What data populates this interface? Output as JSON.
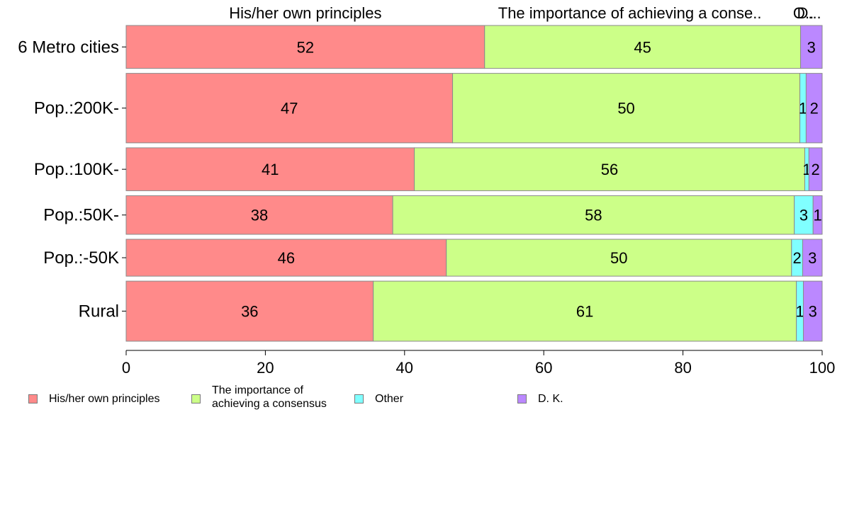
{
  "chart_data": {
    "type": "bar",
    "orientation": "horizontal",
    "stacked": true,
    "categories": [
      "6 Metro cities",
      "Pop.:200K-",
      "Pop.:100K-",
      "Pop.:50K-",
      "Pop.:-50K",
      "Rural"
    ],
    "series": [
      {
        "name": "His/her own principles",
        "color": "#ff8a8a",
        "values": [
          51.5,
          46.9,
          41.4,
          38.3,
          46.0,
          35.5
        ],
        "labels": [
          "52",
          "47",
          "41",
          "38",
          "46",
          "36"
        ]
      },
      {
        "name": "The importance of achieving a consensus",
        "color": "#ccff88",
        "values": [
          45.4,
          49.9,
          56.1,
          57.7,
          49.6,
          60.8
        ],
        "labels": [
          "45",
          "50",
          "56",
          "58",
          "50",
          "61"
        ]
      },
      {
        "name": "Other",
        "color": "#80ffff",
        "values": [
          0.0,
          0.9,
          0.6,
          2.7,
          1.6,
          1.0
        ],
        "labels": [
          "",
          "1",
          "1",
          "3",
          "2",
          "1"
        ]
      },
      {
        "name": "D. K.",
        "color": "#bb88ff",
        "values": [
          3.1,
          2.3,
          1.9,
          1.3,
          2.8,
          2.7
        ],
        "labels": [
          "3",
          "2",
          "2",
          "1",
          "3",
          "3"
        ]
      }
    ],
    "top_labels": [
      "His/her own principles",
      "The importance of achieving a conse..",
      "O..",
      "D..."
    ],
    "xlim": [
      0,
      100
    ],
    "xticks": [
      "0",
      "20",
      "40",
      "60",
      "80",
      "100"
    ],
    "bar_weights": [
      1,
      1.62,
      1,
      0.9,
      0.86,
      1.4
    ],
    "grid": false,
    "legend_position": "bottom",
    "legend_labels": [
      "His/her own principles",
      "The importance of\nachieving a consensus",
      "Other",
      "D. K."
    ]
  }
}
